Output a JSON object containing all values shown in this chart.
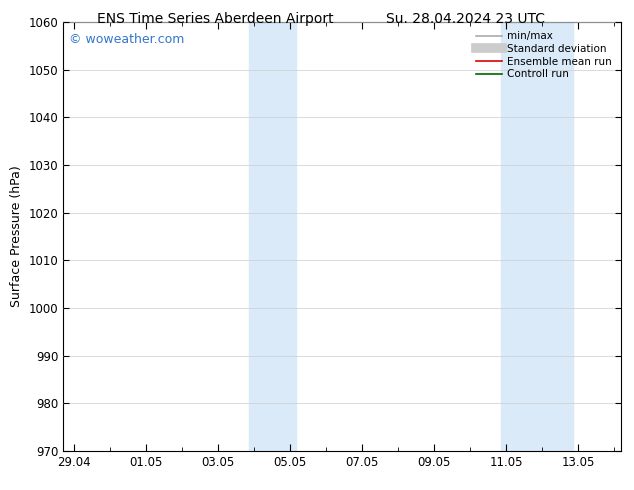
{
  "title_left": "ENS Time Series Aberdeen Airport",
  "title_right": "Su. 28.04.2024 23 UTC",
  "ylabel": "Surface Pressure (hPa)",
  "ylim": [
    970,
    1060
  ],
  "yticks": [
    970,
    980,
    990,
    1000,
    1010,
    1020,
    1030,
    1040,
    1050,
    1060
  ],
  "xtick_labels": [
    "29.04",
    "01.05",
    "03.05",
    "05.05",
    "07.05",
    "09.05",
    "11.05",
    "13.05"
  ],
  "xtick_positions": [
    0,
    2,
    4,
    6,
    8,
    10,
    12,
    14
  ],
  "xlim": [
    -0.3,
    15.2
  ],
  "shaded_bands": [
    {
      "x_start": 4.85,
      "x_end": 6.15
    },
    {
      "x_start": 11.85,
      "x_end": 13.85
    }
  ],
  "background_color": "#ffffff",
  "plot_bg_color": "#ffffff",
  "shaded_color": "#daeaf8",
  "watermark_text": "© woweather.com",
  "watermark_color": "#3377cc",
  "legend_items": [
    {
      "label": "min/max",
      "color": "#aaaaaa",
      "lw": 1.2,
      "style": "solid"
    },
    {
      "label": "Standard deviation",
      "color": "#cccccc",
      "lw": 7,
      "style": "solid"
    },
    {
      "label": "Ensemble mean run",
      "color": "#dd0000",
      "lw": 1.2,
      "style": "solid"
    },
    {
      "label": "Controll run",
      "color": "#006600",
      "lw": 1.2,
      "style": "solid"
    }
  ],
  "grid_color": "#cccccc",
  "tick_label_fontsize": 8.5,
  "axis_label_fontsize": 9,
  "title_fontsize": 10,
  "figsize": [
    6.34,
    4.9
  ],
  "dpi": 100
}
